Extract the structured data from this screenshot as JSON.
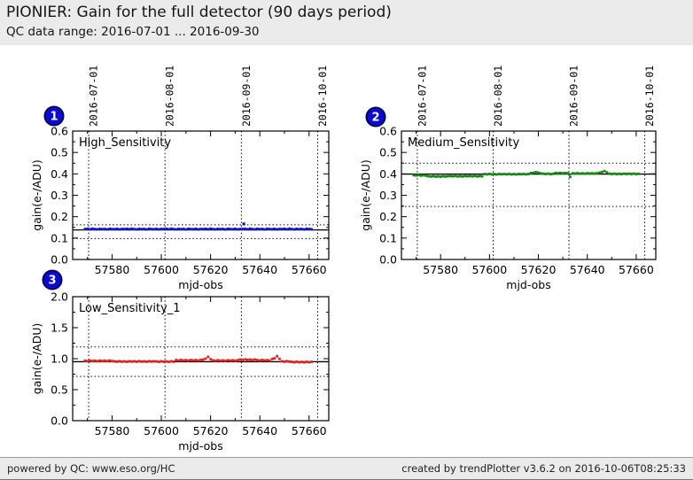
{
  "header": {
    "title": "PIONIER: Gain for the full detector (90 days period)",
    "subtitle": "QC data range: 2016-07-01 ... 2016-09-30"
  },
  "footer": {
    "left": "powered by QC: www.eso.org/HC",
    "right": "created by trendPlotter v3.6.2 on 2016-10-06T08:25:33"
  },
  "colors": {
    "header_bg": "#ebebeb",
    "footer_bg": "#ebebeb",
    "badge_fill": "#0b0bd0",
    "badge_border": "#000066",
    "axis": "#000000",
    "series_high": "#1414cc",
    "series_medium": "#138813",
    "series_low": "#e62020"
  },
  "chart_data": [
    {
      "type": "scatter",
      "badge": "1",
      "title": "High_Sensitivity",
      "xlabel": "mjd-obs",
      "ylabel": "gain(e-/ADU)",
      "xlim": [
        57564,
        57668
      ],
      "ylim": [
        0,
        0.6
      ],
      "xticks": {
        "major": [
          57580,
          57600,
          57620,
          57640,
          57660
        ],
        "minor": [
          57570,
          57590,
          57610,
          57630,
          57650
        ],
        "labels": [
          "57580",
          "57600",
          "57620",
          "57640",
          "57660"
        ]
      },
      "yticks": {
        "major": [
          0,
          0.1,
          0.2,
          0.3,
          0.4,
          0.5,
          0.6
        ],
        "minor": [
          0.05,
          0.15,
          0.25,
          0.35,
          0.45,
          0.55
        ],
        "labels": [
          "0.0",
          "0.1",
          "0.2",
          "0.3",
          "0.4",
          "0.5",
          "0.6"
        ]
      },
      "month_lines": [
        {
          "mjd": 57570.5,
          "label": "2016-07-01"
        },
        {
          "mjd": 57601.5,
          "label": "2016-08-01"
        },
        {
          "mjd": 57632.5,
          "label": "2016-09-01"
        },
        {
          "mjd": 57663.5,
          "label": "2016-10-01"
        }
      ],
      "show_month_labels": true,
      "mean_line": 0.138,
      "upper_limit": 0.162,
      "lower_limit": 0.098,
      "marker_color": "#1414cc",
      "series": {
        "x_start": 57569,
        "x_step": 1,
        "y": [
          0.1424,
          0.1435,
          0.1414,
          0.144,
          0.1422,
          0.1409,
          0.1432,
          0.1419,
          0.1428,
          0.1406,
          0.1437,
          0.1424,
          0.1416,
          0.1433,
          0.141,
          0.1426,
          0.1424,
          0.1435,
          0.1414,
          0.144,
          0.1422,
          0.1409,
          0.1432,
          0.1419,
          0.1428,
          0.1406,
          0.1437,
          0.1424,
          0.1416,
          0.1433,
          0.141,
          0.1426,
          0.1424,
          0.1435,
          0.1414,
          0.144,
          0.1422,
          0.1409,
          0.1432,
          0.1419,
          0.1428,
          0.1406,
          0.1437,
          0.1424,
          0.1416,
          0.1433,
          0.141,
          0.1426,
          0.1424,
          0.1435,
          0.1414,
          0.144,
          0.1422,
          0.1409,
          0.1432,
          0.1419,
          0.1428,
          0.1406,
          0.1437,
          0.1424,
          0.1416,
          0.1433,
          0.141,
          0.1426,
          0.1424,
          0.1435,
          0.1414,
          0.144,
          0.1422,
          0.1409,
          0.1432,
          0.1419,
          0.1428,
          0.1406,
          0.1437,
          0.1424,
          0.1416,
          0.1433,
          0.141,
          0.1426,
          0.1424,
          0.1435,
          0.1414,
          0.144,
          0.1422,
          0.1409,
          0.1432,
          0.1419,
          0.1428,
          0.1406,
          0.1437,
          0.1424,
          0.1416
        ],
        "extra": [
          [
            57633.5,
            0.166
          ]
        ]
      }
    },
    {
      "type": "scatter",
      "badge": "2",
      "title": "Medium_Sensitivity",
      "xlabel": "mjd-obs",
      "ylabel": "gain(e-/ADU)",
      "xlim": [
        57564,
        57668
      ],
      "ylim": [
        0,
        0.6
      ],
      "xticks": {
        "major": [
          57580,
          57600,
          57620,
          57640,
          57660
        ],
        "minor": [
          57570,
          57590,
          57610,
          57630,
          57650
        ],
        "labels": [
          "57580",
          "57600",
          "57620",
          "57640",
          "57660"
        ]
      },
      "yticks": {
        "major": [
          0,
          0.1,
          0.2,
          0.3,
          0.4,
          0.5,
          0.6
        ],
        "minor": [
          0.05,
          0.15,
          0.25,
          0.35,
          0.45,
          0.55
        ],
        "labels": [
          "0.0",
          "0.1",
          "0.2",
          "0.3",
          "0.4",
          "0.5",
          "0.6"
        ]
      },
      "month_lines": [
        {
          "mjd": 57570.5,
          "label": "2016-07-01"
        },
        {
          "mjd": 57601.5,
          "label": "2016-08-01"
        },
        {
          "mjd": 57632.5,
          "label": "2016-09-01"
        },
        {
          "mjd": 57663.5,
          "label": "2016-10-01"
        }
      ],
      "show_month_labels": true,
      "mean_line": 0.399,
      "upper_limit": 0.45,
      "lower_limit": 0.248,
      "marker_color": "#138813",
      "series": {
        "x_start": 57569,
        "x_step": 1,
        "y": [
          0.3938,
          0.3924,
          0.3941,
          0.392,
          0.3934,
          0.3918,
          0.3888,
          0.3874,
          0.3891,
          0.387,
          0.3884,
          0.3868,
          0.3889,
          0.3877,
          0.3888,
          0.3898,
          0.3884,
          0.3901,
          0.388,
          0.3894,
          0.3878,
          0.3899,
          0.3887,
          0.3898,
          0.3884,
          0.3901,
          0.388,
          0.3894,
          0.3886,
          0.3993,
          0.3979,
          0.3996,
          0.3975,
          0.3989,
          0.3973,
          0.3994,
          0.3982,
          0.3993,
          0.3979,
          0.3996,
          0.3975,
          0.3989,
          0.3973,
          0.3994,
          0.3982,
          0.3993,
          0.3979,
          0.3996,
          0.4038,
          0.4054,
          0.4082,
          0.4056,
          0.4026,
          0.4008,
          0.3994,
          0.4011,
          0.399,
          0.4004,
          0.4043,
          0.4029,
          0.4046,
          0.4025,
          0.4039,
          0.4031,
          0.3862,
          0.4028,
          0.4014,
          0.4031,
          0.401,
          0.4024,
          0.4008,
          0.4029,
          0.4017,
          0.4028,
          0.4014,
          0.4031,
          0.4058,
          0.4086,
          0.4132,
          0.4072,
          0.4008,
          0.3994,
          0.4011,
          0.399,
          0.4004,
          0.3988,
          0.4009,
          0.3997,
          0.4008,
          0.3994,
          0.4011,
          0.399,
          0.4004
        ],
        "extra": []
      }
    },
    {
      "type": "scatter",
      "badge": "3",
      "title": "Low_Sensitivity_1",
      "xlabel": "mjd-obs",
      "ylabel": "gain(e-/ADU)",
      "xlim": [
        57564,
        57668
      ],
      "ylim": [
        0,
        2.0
      ],
      "xticks": {
        "major": [
          57580,
          57600,
          57620,
          57640,
          57660
        ],
        "minor": [
          57570,
          57590,
          57610,
          57630,
          57650
        ],
        "labels": [
          "57580",
          "57600",
          "57620",
          "57640",
          "57660"
        ]
      },
      "yticks": {
        "major": [
          0,
          0.5,
          1.0,
          1.5,
          2.0
        ],
        "minor": [
          0.25,
          0.75,
          1.25,
          1.75
        ],
        "labels": [
          "0.0",
          "0.5",
          "1.0",
          "1.5",
          "2.0"
        ]
      },
      "month_lines": [
        {
          "mjd": 57570.5,
          "label": "2016-07-01"
        },
        {
          "mjd": 57601.5,
          "label": "2016-08-01"
        },
        {
          "mjd": 57632.5,
          "label": "2016-09-01"
        },
        {
          "mjd": 57663.5,
          "label": "2016-10-01"
        }
      ],
      "show_month_labels": false,
      "mean_line": 0.951,
      "upper_limit": 1.19,
      "lower_limit": 0.715,
      "marker_color": "#e62020",
      "series": {
        "x_start": 57569,
        "x_step": 1,
        "y": [
          0.968,
          0.961,
          0.97,
          0.962,
          0.967,
          0.96,
          0.969,
          0.963,
          0.968,
          0.961,
          0.97,
          0.962,
          0.958,
          0.951,
          0.96,
          0.952,
          0.957,
          0.95,
          0.959,
          0.953,
          0.958,
          0.951,
          0.96,
          0.952,
          0.957,
          0.95,
          0.959,
          0.953,
          0.958,
          0.956,
          0.949,
          0.958,
          0.95,
          0.955,
          0.948,
          0.957,
          0.951,
          0.977,
          0.97,
          0.979,
          0.971,
          0.976,
          0.969,
          0.978,
          0.972,
          0.977,
          0.97,
          0.979,
          0.985,
          1.0,
          1.03,
          0.99,
          0.973,
          0.966,
          0.975,
          0.967,
          0.972,
          0.965,
          0.974,
          0.968,
          0.973,
          0.966,
          0.975,
          0.986,
          0.979,
          0.988,
          0.98,
          0.985,
          0.978,
          0.987,
          0.977,
          0.97,
          0.979,
          0.971,
          0.976,
          0.969,
          0.995,
          1.005,
          1.04,
          0.998,
          0.958,
          0.951,
          0.96,
          0.952,
          0.948,
          0.941,
          0.95,
          0.942,
          0.947,
          0.94,
          0.949,
          0.943,
          0.948
        ],
        "extra": []
      }
    }
  ]
}
